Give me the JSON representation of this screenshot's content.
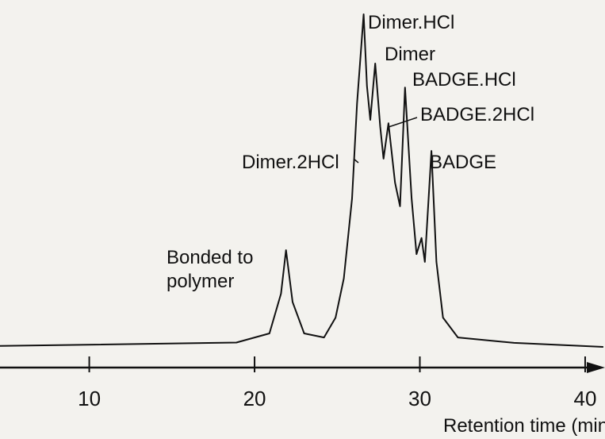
{
  "chart_data": {
    "type": "line",
    "x_label": "Retention time (min)",
    "annotations": [
      "Dimer.HCl",
      "Dimer",
      "BADGE.HCl",
      "BADGE.2HCl",
      "Dimer.2HCl",
      "BADGE",
      "Bonded to polymer"
    ],
    "x": [
      4.6,
      18.9,
      20.9,
      21.6,
      21.9,
      22.3,
      23.0,
      24.2,
      24.9,
      25.4,
      25.9,
      26.2,
      26.6,
      26.8,
      27.0,
      27.3,
      27.6,
      27.8,
      28.1,
      28.5,
      28.8,
      29.1,
      29.5,
      29.8,
      30.1,
      30.3,
      30.7,
      31.0,
      31.4,
      32.3,
      35.7,
      41.1
    ],
    "values": [
      1,
      2,
      4.7,
      16.5,
      29.4,
      14,
      4.7,
      3.5,
      9.4,
      21,
      44.7,
      72.9,
      99.3,
      78,
      68,
      84.7,
      66,
      56.5,
      67,
      49.4,
      42.4,
      77.6,
      44.7,
      28.2,
      33,
      25.9,
      58.8,
      25.9,
      9.4,
      3.5,
      1.9,
      0.7
    ],
    "color": "#111111",
    "xlim": [
      4.6,
      41.2
    ],
    "xticks": [
      10,
      20,
      30,
      40
    ],
    "ylim": [
      0,
      100
    ]
  }
}
